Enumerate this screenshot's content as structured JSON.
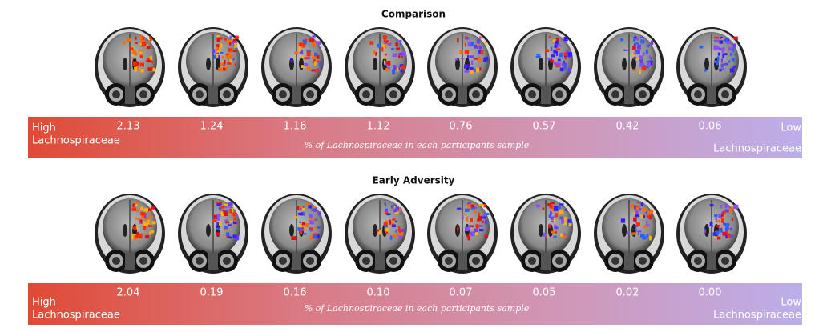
{
  "panels": [
    {
      "title": "Comparison",
      "high": "High",
      "low": "Low",
      "taxon_left": "Lachnospiraceae",
      "taxon_right": "Lachnospiraceae",
      "caption": "% of Lachnospiraceae in each participants sample",
      "values": [
        "2.13",
        "1.24",
        "1.16",
        "1.12",
        "0.76",
        "0.57",
        "0.42",
        "0.06"
      ]
    },
    {
      "title": "Early Adversity",
      "high": "High",
      "low": "Low",
      "taxon_left": "Lachnospiraceae",
      "taxon_right": "Lachnospiraceae",
      "caption": "% of Lachnospiraceae in each participants sample",
      "values": [
        "2.04",
        "0.19",
        "0.16",
        "0.10",
        "0.07",
        "0.05",
        "0.02",
        "0.00"
      ]
    }
  ]
}
